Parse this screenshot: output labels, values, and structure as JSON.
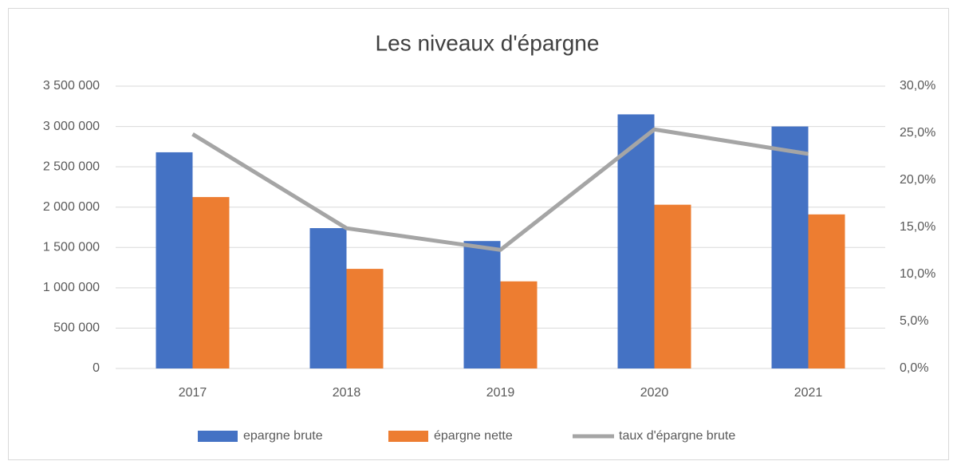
{
  "chart_data": {
    "type": "bar",
    "title": "Les niveaux d'épargne",
    "categories": [
      "2017",
      "2018",
      "2019",
      "2020",
      "2021"
    ],
    "series": [
      {
        "name": "epargne brute",
        "color": "#4472c4",
        "type": "bar",
        "values": [
          2680000,
          1740000,
          1580000,
          3150000,
          3000000
        ]
      },
      {
        "name": "épargne nette",
        "color": "#ed7d31",
        "type": "bar",
        "values": [
          2125000,
          1235000,
          1080000,
          2030000,
          1910000
        ]
      },
      {
        "name": "taux d'épargne brute",
        "color": "#a5a5a5",
        "type": "line",
        "axis": "y2",
        "values": [
          24.9,
          14.9,
          12.6,
          25.4,
          22.8
        ]
      }
    ],
    "ylim": [
      0,
      3500000
    ],
    "yticks": [
      0,
      {
        "value": 500000,
        "label": "500 000"
      },
      {
        "value": 1000000,
        "label": "1 000 000"
      },
      {
        "value": 1500000,
        "label": "1 500 000"
      },
      {
        "value": 2000000,
        "label": "2 000 000"
      },
      {
        "value": 2500000,
        "label": "2 500 000"
      },
      {
        "value": 3000000,
        "label": "3 000 000"
      },
      {
        "value": 3500000,
        "label": "3 500 000"
      }
    ],
    "y2lim": [
      0,
      30
    ],
    "y2ticks": [
      {
        "value": 0,
        "label": "0,0%"
      },
      {
        "value": 5,
        "label": "5,0%"
      },
      {
        "value": 10,
        "label": "10,0%"
      },
      {
        "value": 15,
        "label": "15,0%"
      },
      {
        "value": 20,
        "label": "20,0%"
      },
      {
        "value": 25,
        "label": "25,0%"
      },
      {
        "value": 30,
        "label": "30,0%"
      }
    ],
    "grid": true,
    "legend": "bottom"
  }
}
